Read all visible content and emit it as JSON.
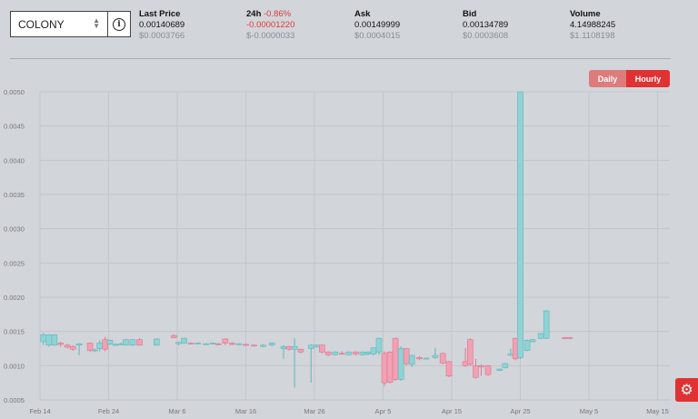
{
  "selector": {
    "market": "COLONY"
  },
  "stats": {
    "last_price": {
      "label": "Last Price",
      "value": "0.00140689",
      "usd": "$0.0003766"
    },
    "change_24h": {
      "label": "24h",
      "percent": "-0.86%",
      "value": "-0.00001220",
      "usd": "$-0.0000033"
    },
    "ask": {
      "label": "Ask",
      "value": "0.00149999",
      "usd": "$0.0004015"
    },
    "bid": {
      "label": "Bid",
      "value": "0.00134789",
      "usd": "$0.0003608"
    },
    "volume": {
      "label": "Volume",
      "value": "4.14988245",
      "usd": "$1.1108198"
    }
  },
  "toggle": {
    "daily": "Daily",
    "hourly": "Hourly",
    "active": "Hourly"
  },
  "colors": {
    "up": "#8fd3d4",
    "up_stroke": "#5fb8ba",
    "down": "#f2a0b4",
    "down_stroke": "#d87890",
    "accent": "#e03232"
  },
  "icons": {
    "settings": "gear-icon",
    "info": "info-icon",
    "sort": "chevron-updown-icon"
  },
  "chart_data": {
    "type": "candlestick",
    "ylim": [
      0.0005,
      0.005
    ],
    "y_ticks": [
      "0.0005",
      "0.0010",
      "0.0015",
      "0.0020",
      "0.0025",
      "0.0030",
      "0.0035",
      "0.0040",
      "0.0045",
      "0.0050"
    ],
    "x_ticks": [
      "Feb 14",
      "Feb 24",
      "Mar 6",
      "Mar 16",
      "Mar 26",
      "Apr 5",
      "Apr 15",
      "Apr 25",
      "May 5",
      "May 15"
    ],
    "grid": true,
    "candles": [
      {
        "day": 0.5,
        "o": 0.00135,
        "c": 0.00145,
        "h": 0.00148,
        "l": 0.0013
      },
      {
        "day": 1.3,
        "o": 0.0013,
        "c": 0.00145,
        "h": 0.00146,
        "l": 0.00128
      },
      {
        "day": 2.1,
        "o": 0.0013,
        "c": 0.00145,
        "h": 0.00146,
        "l": 0.00129
      },
      {
        "day": 3.0,
        "o": 0.00133,
        "c": 0.00131,
        "h": 0.00135,
        "l": 0.00128
      },
      {
        "day": 4.0,
        "o": 0.0013,
        "c": 0.00127,
        "h": 0.00132,
        "l": 0.00125
      },
      {
        "day": 4.8,
        "o": 0.00128,
        "c": 0.00124,
        "h": 0.0013,
        "l": 0.00122
      },
      {
        "day": 5.7,
        "o": 0.0013,
        "c": 0.00132,
        "h": 0.00133,
        "l": 0.00115
      },
      {
        "day": 7.3,
        "o": 0.00133,
        "c": 0.00122,
        "h": 0.00134,
        "l": 0.0012
      },
      {
        "day": 8.0,
        "o": 0.00122,
        "c": 0.00123,
        "h": 0.00125,
        "l": 0.0012
      },
      {
        "day": 8.7,
        "o": 0.00125,
        "c": 0.00133,
        "h": 0.00137,
        "l": 0.00121
      },
      {
        "day": 9.5,
        "o": 0.00138,
        "c": 0.00124,
        "h": 0.00142,
        "l": 0.00121
      },
      {
        "day": 10.2,
        "o": 0.00132,
        "c": 0.00137,
        "h": 0.00138,
        "l": 0.0013
      },
      {
        "day": 11.0,
        "o": 0.0013,
        "c": 0.00131,
        "h": 0.00133,
        "l": 0.00129
      },
      {
        "day": 11.8,
        "o": 0.00131,
        "c": 0.00132,
        "h": 0.00134,
        "l": 0.0013
      },
      {
        "day": 12.5,
        "o": 0.0013,
        "c": 0.00138,
        "h": 0.00139,
        "l": 0.00129
      },
      {
        "day": 13.5,
        "o": 0.0013,
        "c": 0.00138,
        "h": 0.00139,
        "l": 0.00129
      },
      {
        "day": 14.5,
        "o": 0.00138,
        "c": 0.0013,
        "h": 0.0014,
        "l": 0.00129
      },
      {
        "day": 17.0,
        "o": 0.0013,
        "c": 0.00139,
        "h": 0.0014,
        "l": 0.00129
      },
      {
        "day": 19.5,
        "o": 0.00144,
        "c": 0.00141,
        "h": 0.00146,
        "l": 0.0014
      },
      {
        "day": 20.2,
        "o": 0.00132,
        "c": 0.00134,
        "h": 0.00135,
        "l": 0.0013
      },
      {
        "day": 21.0,
        "o": 0.00133,
        "c": 0.0014,
        "h": 0.00141,
        "l": 0.00132
      },
      {
        "day": 22.0,
        "o": 0.00133,
        "c": 0.00132,
        "h": 0.00134,
        "l": 0.00131
      },
      {
        "day": 23.0,
        "o": 0.00132,
        "c": 0.00133,
        "h": 0.00134,
        "l": 0.00131
      },
      {
        "day": 24.2,
        "o": 0.00132,
        "c": 0.00132,
        "h": 0.00133,
        "l": 0.00131
      },
      {
        "day": 25.2,
        "o": 0.00132,
        "c": 0.00133,
        "h": 0.00134,
        "l": 0.00131
      },
      {
        "day": 26.0,
        "o": 0.00132,
        "c": 0.00131,
        "h": 0.00133,
        "l": 0.0013
      },
      {
        "day": 27.0,
        "o": 0.00139,
        "c": 0.00133,
        "h": 0.0014,
        "l": 0.0013
      },
      {
        "day": 28.0,
        "o": 0.00133,
        "c": 0.00131,
        "h": 0.00134,
        "l": 0.0013
      },
      {
        "day": 29.0,
        "o": 0.00131,
        "c": 0.00132,
        "h": 0.00133,
        "l": 0.0013
      },
      {
        "day": 30.0,
        "o": 0.00131,
        "c": 0.0013,
        "h": 0.00132,
        "l": 0.00129
      },
      {
        "day": 31.2,
        "o": 0.0013,
        "c": 0.00129,
        "h": 0.00131,
        "l": 0.00128
      },
      {
        "day": 32.5,
        "o": 0.00128,
        "c": 0.0013,
        "h": 0.00131,
        "l": 0.00127
      },
      {
        "day": 33.8,
        "o": 0.0013,
        "c": 0.00133,
        "h": 0.00134,
        "l": 0.00128
      },
      {
        "day": 35.5,
        "o": 0.00125,
        "c": 0.00128,
        "h": 0.0013,
        "l": 0.0011
      },
      {
        "day": 36.3,
        "o": 0.00128,
        "c": 0.00124,
        "h": 0.00129,
        "l": 0.00122
      },
      {
        "day": 37.1,
        "o": 0.00124,
        "c": 0.00128,
        "h": 0.0014,
        "l": 0.00068
      },
      {
        "day": 38.0,
        "o": 0.00124,
        "c": 0.0012,
        "h": 0.00125,
        "l": 0.00118
      },
      {
        "day": 39.5,
        "o": 0.00125,
        "c": 0.0013,
        "h": 0.00131,
        "l": 0.00075
      },
      {
        "day": 40.3,
        "o": 0.00128,
        "c": 0.0013,
        "h": 0.00131,
        "l": 0.00126
      },
      {
        "day": 41.1,
        "o": 0.0013,
        "c": 0.0012,
        "h": 0.00131,
        "l": 0.00118
      },
      {
        "day": 42.0,
        "o": 0.0012,
        "c": 0.00116,
        "h": 0.00121,
        "l": 0.00114
      },
      {
        "day": 43.0,
        "o": 0.00116,
        "c": 0.0012,
        "h": 0.00121,
        "l": 0.00115
      },
      {
        "day": 44.0,
        "o": 0.00118,
        "c": 0.00117,
        "h": 0.00121,
        "l": 0.00116
      },
      {
        "day": 45.0,
        "o": 0.00116,
        "c": 0.0012,
        "h": 0.00121,
        "l": 0.00115
      },
      {
        "day": 46.0,
        "o": 0.0012,
        "c": 0.00117,
        "h": 0.00121,
        "l": 0.00115
      },
      {
        "day": 47.0,
        "o": 0.00116,
        "c": 0.0012,
        "h": 0.00121,
        "l": 0.00115
      },
      {
        "day": 47.8,
        "o": 0.00117,
        "c": 0.0012,
        "h": 0.00121,
        "l": 0.00115
      },
      {
        "day": 48.6,
        "o": 0.00117,
        "c": 0.00126,
        "h": 0.00127,
        "l": 0.00115
      },
      {
        "day": 49.4,
        "o": 0.0012,
        "c": 0.0014,
        "h": 0.00141,
        "l": 0.00116
      },
      {
        "day": 50.2,
        "o": 0.00118,
        "c": 0.00075,
        "h": 0.00121,
        "l": 0.0007
      },
      {
        "day": 51.0,
        "o": 0.0012,
        "c": 0.00076,
        "h": 0.00121,
        "l": 0.00074
      },
      {
        "day": 51.8,
        "o": 0.0014,
        "c": 0.0008,
        "h": 0.00141,
        "l": 0.00078
      },
      {
        "day": 52.6,
        "o": 0.0008,
        "c": 0.00125,
        "h": 0.00128,
        "l": 0.00078
      },
      {
        "day": 53.4,
        "o": 0.00125,
        "c": 0.00103,
        "h": 0.00126,
        "l": 0.001
      },
      {
        "day": 54.2,
        "o": 0.00102,
        "c": 0.00115,
        "h": 0.00116,
        "l": 0.00098
      },
      {
        "day": 55.3,
        "o": 0.00112,
        "c": 0.0011,
        "h": 0.00114,
        "l": 0.00108
      },
      {
        "day": 56.3,
        "o": 0.0011,
        "c": 0.00111,
        "h": 0.00112,
        "l": 0.00109
      },
      {
        "day": 57.6,
        "o": 0.00112,
        "c": 0.00115,
        "h": 0.00126,
        "l": 0.0011
      },
      {
        "day": 58.7,
        "o": 0.00118,
        "c": 0.00104,
        "h": 0.00119,
        "l": 0.00102
      },
      {
        "day": 59.6,
        "o": 0.00106,
        "c": 0.00085,
        "h": 0.00107,
        "l": 0.00083
      },
      {
        "day": 62.0,
        "o": 0.00106,
        "c": 0.001,
        "h": 0.00126,
        "l": 0.00098
      },
      {
        "day": 62.7,
        "o": 0.00138,
        "c": 0.00102,
        "h": 0.0014,
        "l": 0.001
      },
      {
        "day": 63.5,
        "o": 0.001,
        "c": 0.00083,
        "h": 0.0011,
        "l": 0.00081
      },
      {
        "day": 64.3,
        "o": 0.001,
        "c": 0.00098,
        "h": 0.00102,
        "l": 0.00085
      },
      {
        "day": 65.3,
        "o": 0.001,
        "c": 0.00087,
        "h": 0.00101,
        "l": 0.00085
      },
      {
        "day": 67.0,
        "o": 0.00093,
        "c": 0.00095,
        "h": 0.00096,
        "l": 0.00092
      },
      {
        "day": 67.8,
        "o": 0.00097,
        "c": 0.00103,
        "h": 0.00104,
        "l": 0.00096
      },
      {
        "day": 68.6,
        "o": 0.00115,
        "c": 0.00117,
        "h": 0.00125,
        "l": 0.00114
      },
      {
        "day": 69.3,
        "o": 0.0014,
        "c": 0.0011,
        "h": 0.00141,
        "l": 0.00108
      },
      {
        "day": 70.0,
        "o": 0.00112,
        "c": 0.005,
        "h": 0.005,
        "l": 0.0011
      },
      {
        "day": 71.0,
        "o": 0.00122,
        "c": 0.00137,
        "h": 0.00138,
        "l": 0.00121
      },
      {
        "day": 71.8,
        "o": 0.00135,
        "c": 0.00138,
        "h": 0.00139,
        "l": 0.00134
      },
      {
        "day": 73.0,
        "o": 0.0014,
        "c": 0.00147,
        "h": 0.00148,
        "l": 0.00139
      },
      {
        "day": 73.8,
        "o": 0.0014,
        "c": 0.0018,
        "h": 0.00181,
        "l": 0.00139
      },
      {
        "day": 76.5,
        "o": 0.00141,
        "c": 0.0014,
        "h": 0.00142,
        "l": 0.00139
      },
      {
        "day": 77.2,
        "o": 0.00141,
        "c": 0.0014,
        "h": 0.00142,
        "l": 0.00139
      }
    ]
  }
}
